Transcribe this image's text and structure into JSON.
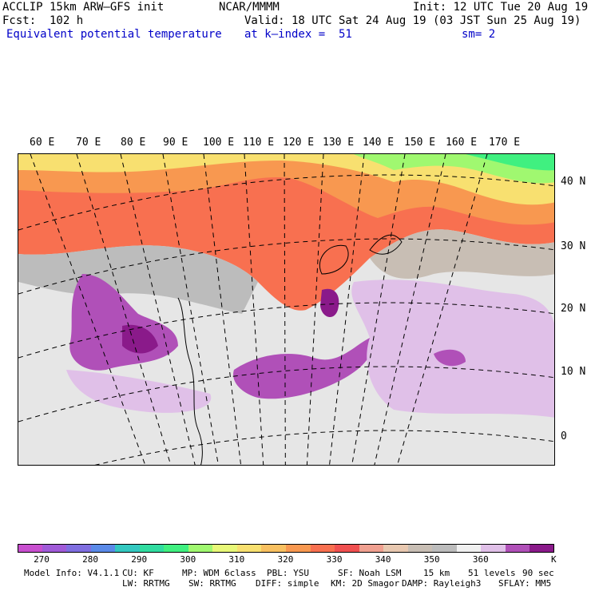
{
  "header": {
    "model_title": "ACCLIP 15km ARW–GFS init",
    "center": "NCAR/MMMM",
    "init": "Init: 12 UTC Tue 20 Aug 19",
    "forecast": "Fcst:  102 h",
    "valid": "Valid: 18 UTC Sat 24 Aug 19 (03 JST Sun 25 Aug 19)",
    "field": "Equivalent potential temperature",
    "level": "at k–index =  51",
    "smoothing": "sm= 2"
  },
  "map": {
    "longitude_labels": [
      "60 E",
      "70 E",
      "80 E",
      "90 E",
      "100 E",
      "110 E",
      "120 E",
      "130 E",
      "140 E",
      "150 E",
      "160 E",
      "170 E"
    ],
    "latitude_labels": [
      "40 N",
      "30 N",
      "20 N",
      "10 N",
      "0"
    ]
  },
  "colorbar": {
    "unit": "K",
    "colors": [
      "#c84fcf",
      "#a05ad8",
      "#7f6ee0",
      "#5a8ae8",
      "#33c8c0",
      "#30dca0",
      "#40f080",
      "#a0f870",
      "#e8f878",
      "#f8e070",
      "#f8c060",
      "#f89850",
      "#f87050",
      "#f05050",
      "#f0a090",
      "#e8c8b0",
      "#c8beb4",
      "#bcbcbc",
      "#f0f0f0",
      "#e0c0e8",
      "#b050b8",
      "#8a1a8a"
    ],
    "labels": [
      "270",
      "280",
      "290",
      "300",
      "310",
      "320",
      "330",
      "340",
      "350",
      "360"
    ]
  },
  "footer": {
    "line1": [
      "Model Info: V4.1.1",
      "CU: KF",
      "MP: WDM 6class",
      "PBL: YSU",
      "SF: Noah LSM",
      "15 km",
      "51 levels",
      "90 sec"
    ],
    "line2": [
      "LW: RRTMG",
      "SW: RRTMG",
      "DIFF: simple",
      "KM: 2D Smagor",
      "DAMP: Rayleigh3",
      "SFLAY: MM5"
    ]
  }
}
